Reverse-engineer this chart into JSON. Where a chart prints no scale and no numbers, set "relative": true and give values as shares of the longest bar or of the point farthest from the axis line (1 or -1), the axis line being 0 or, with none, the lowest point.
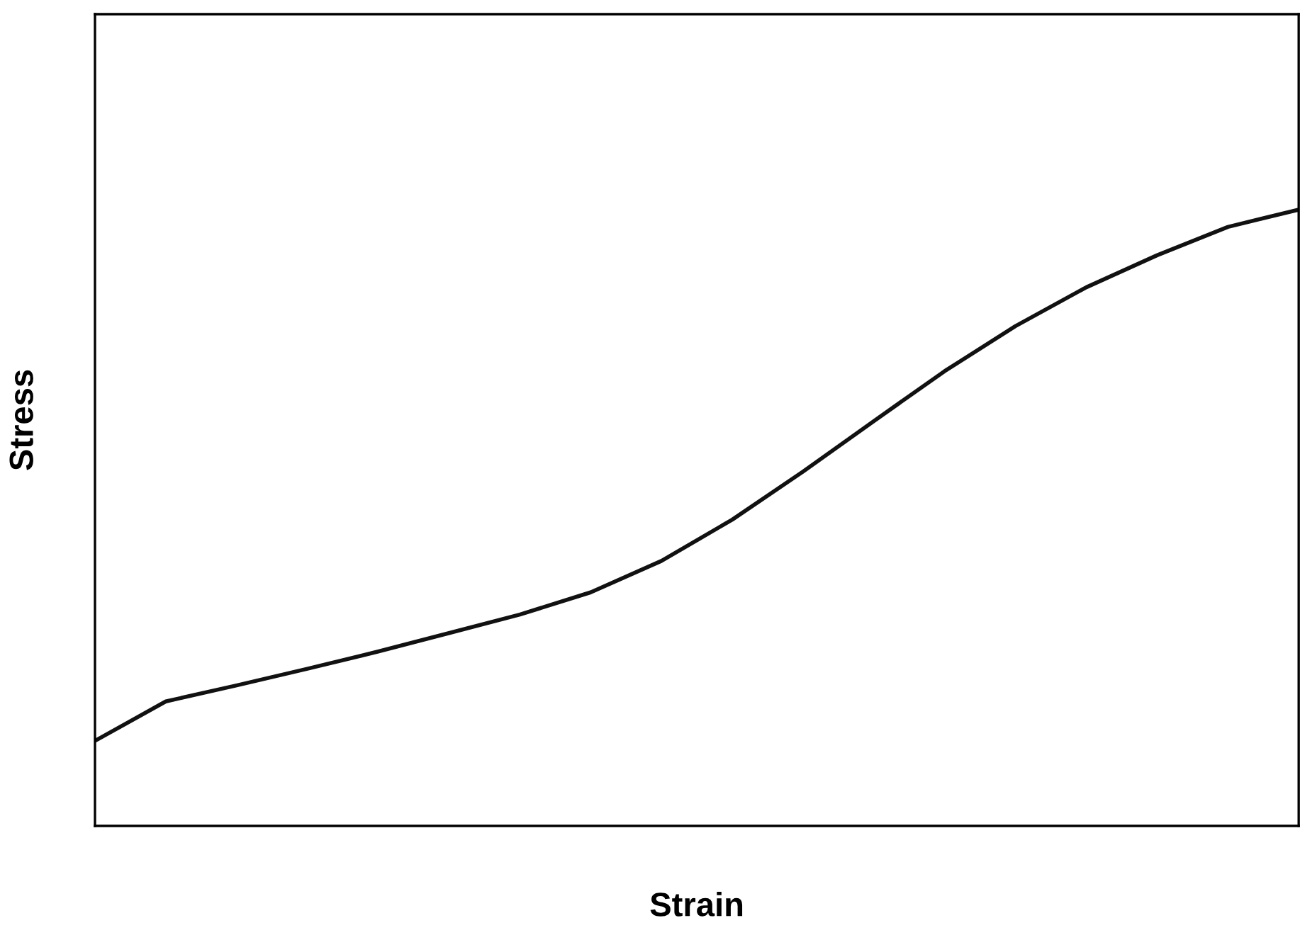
{
  "chart_data": {
    "type": "line",
    "xlabel": "Strain",
    "ylabel": "Stress",
    "relative": true,
    "color": "#111111",
    "grid": false,
    "legend": false,
    "categories": [
      null,
      null,
      null,
      null,
      null,
      null,
      null,
      null,
      null,
      null,
      null,
      null,
      null,
      null,
      null,
      null,
      null,
      null
    ],
    "values": [
      0.138,
      0.202,
      0.228,
      0.255,
      0.283,
      0.313,
      0.343,
      0.379,
      0.43,
      0.497,
      0.575,
      0.657,
      0.738,
      0.811,
      0.874,
      0.926,
      0.972,
      1
    ]
  }
}
